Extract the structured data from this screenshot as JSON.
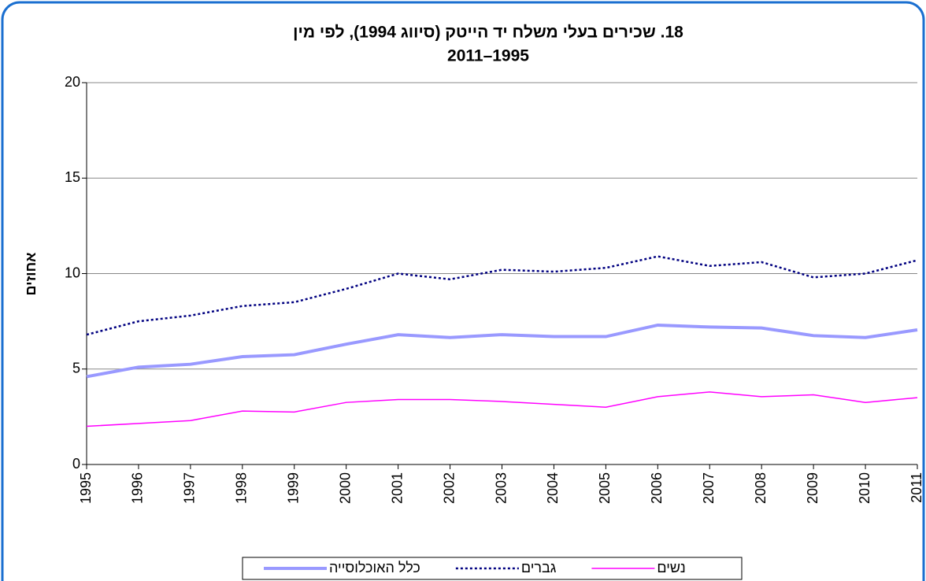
{
  "chart_data": {
    "type": "line",
    "title": "18. שכירים בעלי משלח יד הייטק (סיווג 1994), לפי מין",
    "subtitle": "2011–1995",
    "y_label": "אחוזים",
    "categories": [
      "1995",
      "1996",
      "1997",
      "1998",
      "1999",
      "2000",
      "2001",
      "2002",
      "2003",
      "2004",
      "2005",
      "2006",
      "2007",
      "2008",
      "2009",
      "2010",
      "2011"
    ],
    "series": [
      {
        "name": "כלל האוכלוסייה",
        "color": "#9999ff",
        "values": [
          4.6,
          5.1,
          5.25,
          5.65,
          5.75,
          6.3,
          6.8,
          6.65,
          6.8,
          6.7,
          6.7,
          7.3,
          7.2,
          7.15,
          6.75,
          6.65,
          7.05
        ]
      },
      {
        "name": "גברים",
        "color": "#000080",
        "values": [
          6.8,
          7.5,
          7.8,
          8.3,
          8.5,
          9.2,
          10.0,
          9.7,
          10.2,
          10.1,
          10.3,
          10.9,
          10.4,
          10.6,
          9.8,
          10.0,
          10.7
        ]
      },
      {
        "name": "נשים",
        "color": "#ff00ff",
        "values": [
          2.0,
          2.15,
          2.3,
          2.8,
          2.75,
          3.25,
          3.4,
          3.4,
          3.3,
          3.15,
          3.0,
          3.55,
          3.8,
          3.55,
          3.65,
          3.25,
          3.5
        ]
      }
    ],
    "ylim": [
      0,
      20
    ],
    "yticks": [
      0,
      5,
      10,
      15,
      20
    ],
    "grid": true
  }
}
